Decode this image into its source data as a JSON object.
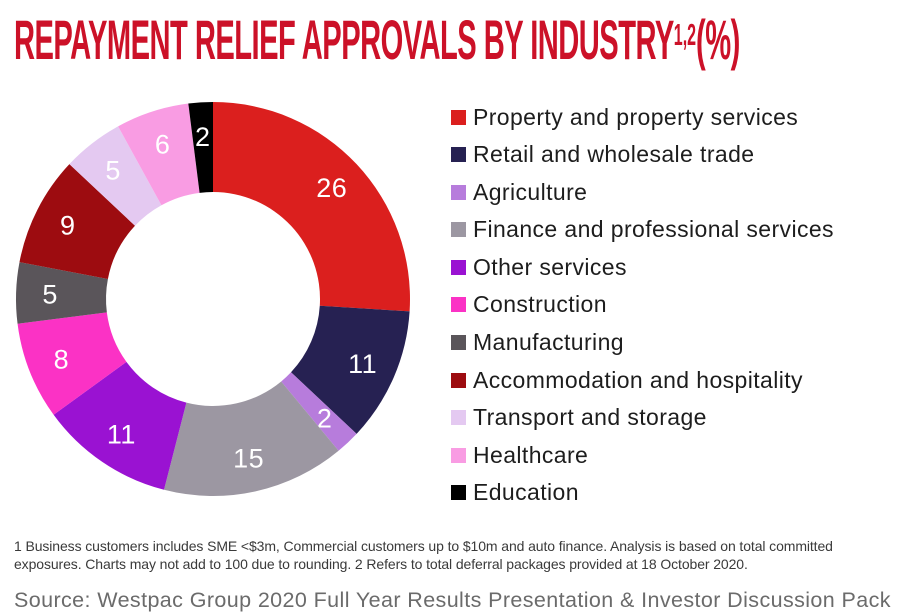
{
  "page": {
    "title": {
      "main": "REPAYMENT RELIEF APPROVALS BY INDUSTRY",
      "superscript": "1,2",
      "suffix": "(%)"
    },
    "footnote": "1 Business customers includes SME <$3m, Commercial customers up to $10m and auto finance. Analysis is based on total committed exposures. Charts may not add to 100 due to rounding. 2 Refers to total deferral packages provided at 18 October 2020.",
    "source": "Source: Westpac Group 2020 Full Year Results Presentation & Investor Discussion Pack"
  },
  "colors": {
    "title_red": "#CC1128",
    "legend_text": "#1D1D1D",
    "footnote_text": "#3A3A3A",
    "source_text": "#6B6B6B",
    "segment_label_text": "#FFFFFF",
    "background": "#FFFFFF"
  },
  "chart_data": {
    "type": "pie",
    "variant": "donut",
    "title": "Repayment relief approvals by industry (%)",
    "total": 100,
    "start_angle_deg": 0,
    "direction": "clockwise",
    "legend_position": "right",
    "data_labels": "inside-ring",
    "inner_radius_ratio": 0.54,
    "segments": [
      {
        "label": "Property and property services",
        "value": 26,
        "color": "#DB1F1E"
      },
      {
        "label": "Retail and wholesale trade",
        "value": 11,
        "color": "#262152"
      },
      {
        "label": "Agriculture",
        "value": 2,
        "color": "#B77CDC"
      },
      {
        "label": "Finance and professional services",
        "value": 15,
        "color": "#9C97A2"
      },
      {
        "label": "Other services",
        "value": 11,
        "color": "#9A12D2"
      },
      {
        "label": "Construction",
        "value": 8,
        "color": "#FB32C5"
      },
      {
        "label": "Manufacturing",
        "value": 5,
        "color": "#5A555A"
      },
      {
        "label": "Accommodation and hospitality",
        "value": 9,
        "color": "#9D0C10"
      },
      {
        "label": "Transport and storage",
        "value": 5,
        "color": "#E4C9F1"
      },
      {
        "label": "Healthcare",
        "value": 6,
        "color": "#F99CE3"
      },
      {
        "label": "Education",
        "value": 2,
        "color": "#000000"
      }
    ]
  }
}
